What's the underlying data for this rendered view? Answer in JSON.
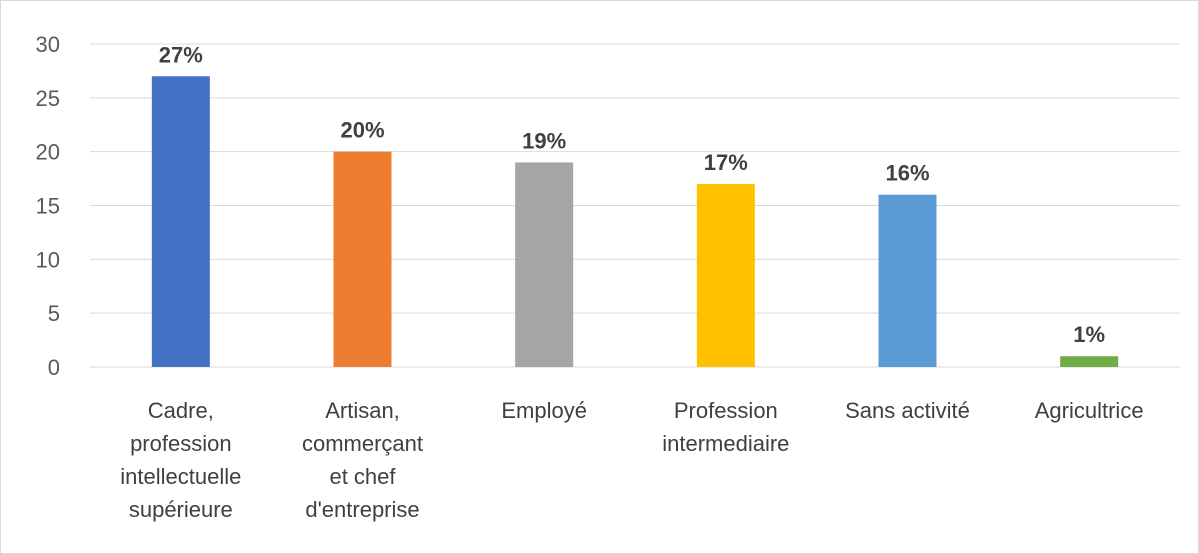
{
  "chart_data": {
    "type": "bar",
    "categories": [
      [
        "Cadre,",
        "profession",
        "intellectuelle",
        "supérieure"
      ],
      [
        "Artisan,",
        "commerçant",
        "et chef",
        "d'entreprise"
      ],
      [
        "Employé"
      ],
      [
        "Profession",
        "intermediaire"
      ],
      [
        "Sans activité"
      ],
      [
        "Agricultrice"
      ]
    ],
    "values": [
      27,
      20,
      19,
      17,
      16,
      1
    ],
    "data_labels": [
      "27%",
      "20%",
      "19%",
      "17%",
      "16%",
      "1%"
    ],
    "colors": [
      "#4472c4",
      "#ed7d31",
      "#a5a5a5",
      "#ffc000",
      "#5b9bd5",
      "#70ad47"
    ],
    "ylim": [
      0,
      30
    ],
    "yticks": [
      0,
      5,
      10,
      15,
      20,
      25,
      30
    ],
    "grid": true,
    "legend": "none"
  }
}
